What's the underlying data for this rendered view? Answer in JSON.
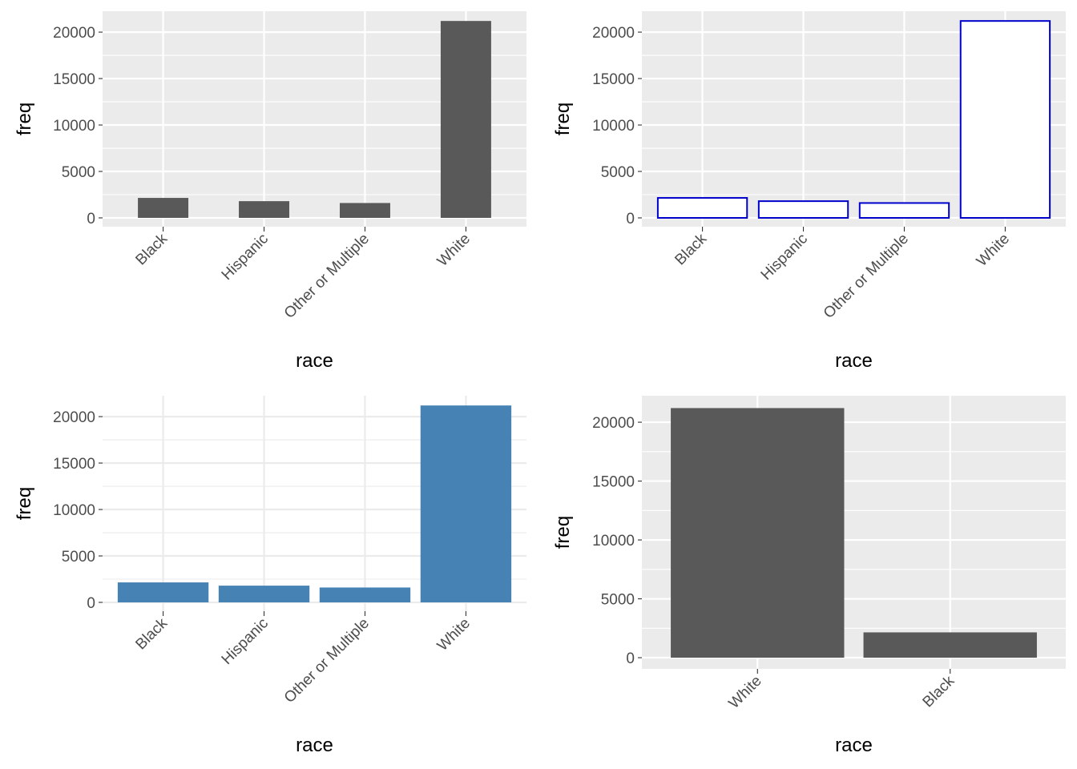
{
  "chart_data": [
    {
      "type": "bar",
      "panel": "top-left",
      "categories": [
        "Black",
        "Hispanic",
        "Other or Multiple",
        "White"
      ],
      "values": [
        2150,
        1800,
        1600,
        21200
      ],
      "xlabel": "race",
      "ylabel": "freq",
      "ylim": [
        -950,
        22250
      ],
      "yticks": [
        0,
        5000,
        10000,
        15000,
        20000
      ],
      "bar_width_fraction": 0.5,
      "bar_fill": "#595959",
      "bar_stroke": "",
      "panel_background": "#ebebeb",
      "grid": "white",
      "x_tick_rotation": -45
    },
    {
      "type": "bar",
      "panel": "top-right",
      "categories": [
        "Black",
        "Hispanic",
        "Other or Multiple",
        "White"
      ],
      "values": [
        2150,
        1800,
        1600,
        21200
      ],
      "xlabel": "race",
      "ylabel": "freq",
      "ylim": [
        -950,
        22250
      ],
      "yticks": [
        0,
        5000,
        10000,
        15000,
        20000
      ],
      "bar_width_fraction": 0.9,
      "bar_fill": "#ffffff",
      "bar_stroke": "#0000cd",
      "panel_background": "#ebebeb",
      "grid": "white",
      "x_tick_rotation": -45
    },
    {
      "type": "bar",
      "panel": "bottom-left",
      "categories": [
        "Black",
        "Hispanic",
        "Other or Multiple",
        "White"
      ],
      "values": [
        2150,
        1800,
        1600,
        21200
      ],
      "xlabel": "race",
      "ylabel": "freq",
      "ylim": [
        -950,
        22250
      ],
      "yticks": [
        0,
        5000,
        10000,
        15000,
        20000
      ],
      "bar_width_fraction": 0.9,
      "bar_fill": "#4682b4",
      "bar_stroke": "",
      "panel_background": "#ffffff",
      "grid": "light-gray",
      "x_tick_rotation": -45
    },
    {
      "type": "bar",
      "panel": "bottom-right",
      "categories": [
        "White",
        "Black"
      ],
      "values": [
        21200,
        2150
      ],
      "xlabel": "race",
      "ylabel": "freq",
      "ylim": [
        -950,
        22250
      ],
      "yticks": [
        0,
        5000,
        10000,
        15000,
        20000
      ],
      "bar_width_fraction": 0.9,
      "bar_fill": "#595959",
      "bar_stroke": "",
      "panel_background": "#ebebeb",
      "grid": "white",
      "x_tick_rotation": -45
    }
  ]
}
